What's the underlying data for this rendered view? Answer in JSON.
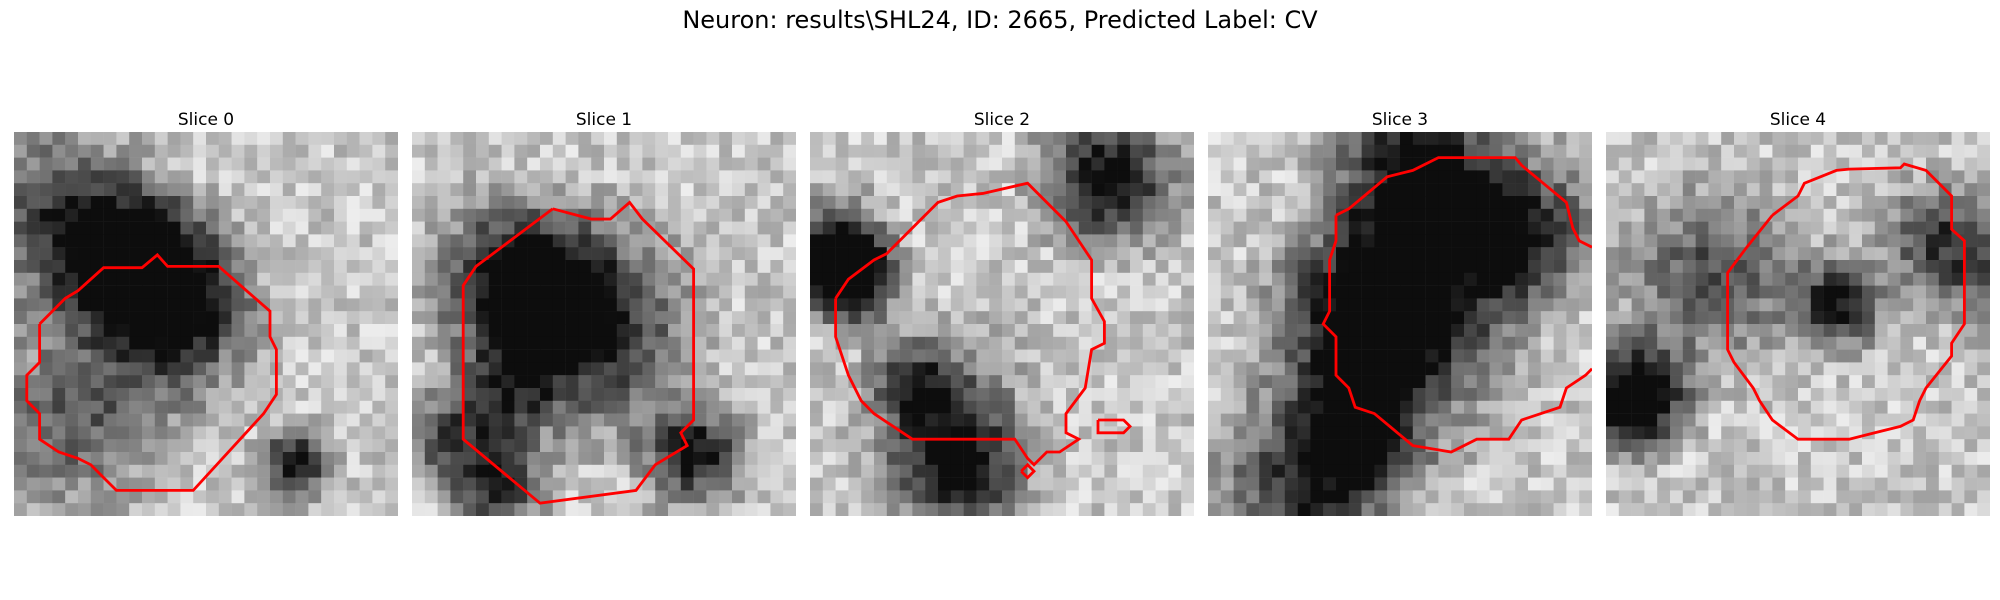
{
  "figure": {
    "title": "Neuron: results\\SHL24, ID: 2665, Predicted Label: CV"
  },
  "slices": [
    {
      "title": "Slice 0"
    },
    {
      "title": "Slice 1"
    },
    {
      "title": "Slice 2"
    },
    {
      "title": "Slice 3"
    },
    {
      "title": "Slice 4"
    }
  ],
  "colors": {
    "contour": "#ff0000"
  }
}
